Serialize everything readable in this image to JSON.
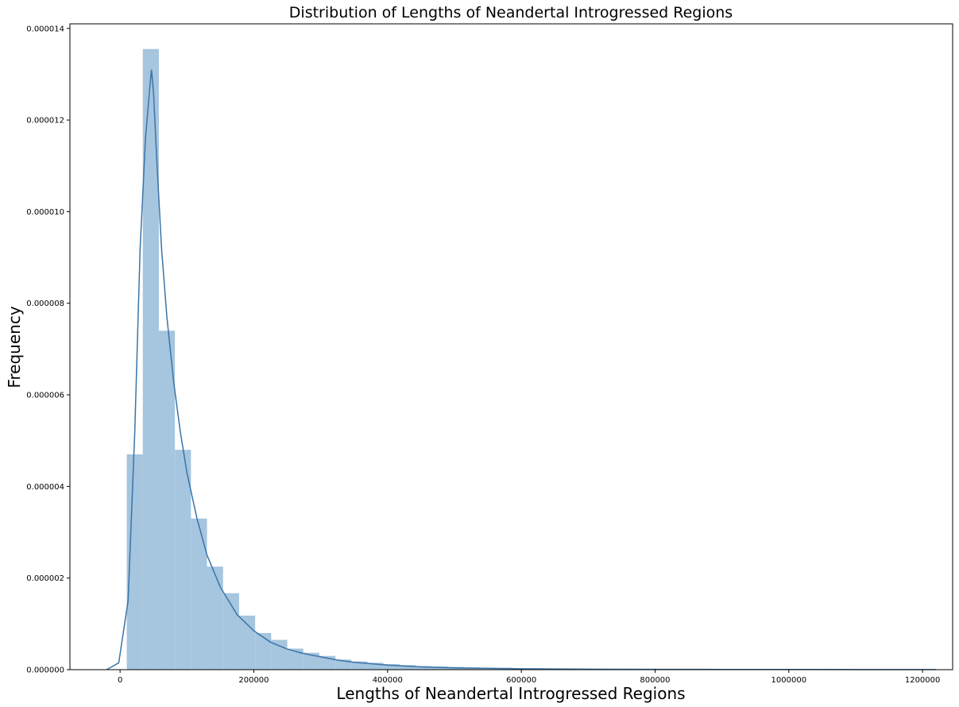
{
  "chart_data": {
    "type": "bar",
    "title": "Distribution of Lengths of Neandertal Introgressed Regions",
    "xlabel": "Lengths of Neandertal Introgressed Regions",
    "ylabel": "Frequency",
    "xlim": [
      -75000,
      1245000
    ],
    "ylim": [
      0,
      1.41e-05
    ],
    "grid": false,
    "legend": "none",
    "x_ticks": [
      0,
      200000,
      400000,
      600000,
      800000,
      1000000,
      1200000
    ],
    "x_tick_labels": [
      "0",
      "200000",
      "400000",
      "600000",
      "800000",
      "1000000",
      "1200000"
    ],
    "y_ticks": [
      0,
      2e-06,
      4e-06,
      6e-06,
      8e-06,
      1e-05,
      1.2e-05,
      1.4e-05
    ],
    "y_tick_labels": [
      "0.000000",
      "0.000002",
      "0.000004",
      "0.000006",
      "0.000008",
      "0.000010",
      "0.000012",
      "0.000014"
    ],
    "bar_color": "#a6c5de",
    "line_color": "#3a75a8",
    "histogram": {
      "bin_edges": [
        10000,
        34000,
        58000,
        82000,
        106000,
        130000,
        154000,
        178000,
        202000,
        226000,
        250000,
        274000,
        298000,
        322000,
        346000,
        370000,
        394000,
        418000,
        442000,
        466000,
        490000,
        514000,
        538000,
        562000,
        586000,
        610000,
        634000,
        658000,
        682000,
        706000,
        730000,
        754000,
        778000,
        802000,
        826000,
        850000,
        874000,
        898000,
        922000,
        946000,
        970000,
        994000,
        1018000,
        1042000,
        1066000,
        1090000,
        1114000,
        1138000,
        1162000,
        1186000,
        1210000
      ],
      "values": [
        4.7e-06,
        1.355e-05,
        7.4e-06,
        4.8e-06,
        3.3e-06,
        2.25e-06,
        1.67e-06,
        1.18e-06,
        8e-07,
        6.5e-07,
        4.6e-07,
        3.7e-07,
        3e-07,
        2.2e-07,
        1.8e-07,
        1.5e-07,
        1.2e-07,
        1e-07,
        8e-08,
        7e-08,
        6e-08,
        5e-08,
        4e-08,
        4e-08,
        3e-08,
        3e-08,
        2e-08,
        2e-08,
        2e-08,
        2e-08,
        2e-08,
        2e-08,
        2e-08,
        1e-08,
        1e-08,
        1e-08,
        1e-08,
        1e-08,
        1e-08,
        1e-08,
        1e-08,
        1e-08,
        1e-08,
        1e-08,
        1e-08,
        1e-08,
        1e-08,
        1e-08,
        1e-08,
        1e-08
      ]
    },
    "kde": {
      "x": [
        -20000,
        -2000,
        12000,
        22000,
        30000,
        38000,
        45000,
        47000,
        50000,
        55000,
        62000,
        70000,
        80000,
        90000,
        100000,
        115000,
        130000,
        150000,
        175000,
        200000,
        225000,
        250000,
        275000,
        300000,
        325000,
        350000,
        400000,
        450000,
        500000,
        550000,
        600000,
        650000,
        700000,
        800000,
        900000,
        1000000,
        1100000,
        1220000
      ],
      "y": [
        0,
        1.5e-07,
        1.5e-06,
        5.2e-06,
        9.2e-06,
        1.16e-05,
        1.28e-05,
        1.31e-05,
        1.26e-05,
        1.11e-05,
        9.2e-06,
        7.7e-06,
        6.3e-06,
        5.2e-06,
        4.3e-06,
        3.3e-06,
        2.5e-06,
        1.8e-06,
        1.2e-06,
        8.5e-07,
        6e-07,
        4.5e-07,
        3.5e-07,
        2.8e-07,
        2.1e-07,
        1.6e-07,
        1e-07,
        6e-08,
        4e-08,
        3e-08,
        2e-08,
        1.5e-08,
        1e-08,
        7e-09,
        5e-09,
        4e-09,
        3e-09,
        3e-09
      ]
    }
  }
}
